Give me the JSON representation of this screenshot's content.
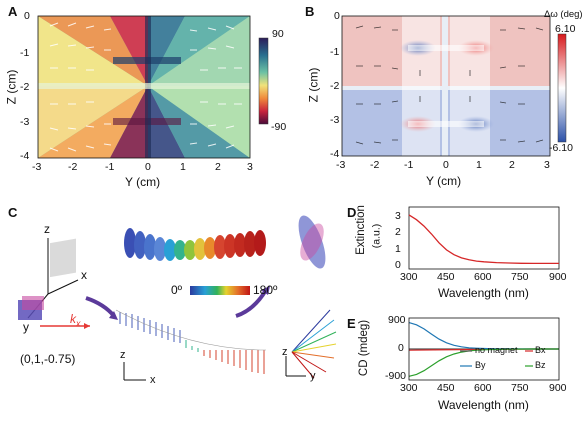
{
  "panels": {
    "A": {
      "label": "A",
      "xlabel": "Y (cm)",
      "ylabel": "Z (cm)",
      "xticks": [
        "-3",
        "-2",
        "-1",
        "0",
        "1",
        "2",
        "3"
      ],
      "yticks": [
        "0",
        "-1",
        "-2",
        "-3",
        "-4"
      ],
      "colorbar_max": "90",
      "colorbar_min": "-90"
    },
    "B": {
      "label": "B",
      "xlabel": "Y (cm)",
      "ylabel": "Z (cm)",
      "xticks": [
        "-3",
        "-2",
        "-1",
        "0",
        "1",
        "2",
        "3"
      ],
      "yticks": [
        "0",
        "-1",
        "-2",
        "-3",
        "-4"
      ],
      "colorbar_title": "Δω (deg)",
      "colorbar_max": "6.10",
      "colorbar_min": "-6.10"
    },
    "C": {
      "label": "C",
      "axis_z": "z",
      "axis_x": "x",
      "axis_y": "y",
      "k_label": "k",
      "k_sub": "x",
      "coordinate": "(0,1,-0.75)",
      "scale_min": "0º",
      "scale_max": "180º",
      "bottom_z1": "z",
      "bottom_x": "x",
      "bottom_z2": "z",
      "bottom_y": "y"
    },
    "D": {
      "label": "D",
      "ylabel": "Extinction",
      "ylabel2": "(a.u.)",
      "xlabel": "Wavelength (nm)",
      "xticks": [
        "300",
        "450",
        "600",
        "750",
        "900"
      ],
      "yticks": [
        "3",
        "2",
        "1",
        "0"
      ]
    },
    "E": {
      "label": "E",
      "ylabel": "CD (mdeg)",
      "xlabel": "Wavelength (nm)",
      "xticks": [
        "300",
        "450",
        "600",
        "750",
        "900"
      ],
      "yticks": [
        "900",
        "0",
        "-900"
      ],
      "legend": [
        "no magnet",
        "Bx",
        "By",
        "Bz"
      ]
    }
  },
  "chart_data": [
    {
      "type": "line",
      "panel": "D",
      "xlabel": "Wavelength (nm)",
      "ylabel": "Extinction (a.u.)",
      "xlim": [
        300,
        900
      ],
      "ylim": [
        -0.3,
        3.6
      ],
      "series": [
        {
          "color": "#d62728",
          "x": [
            300,
            330,
            360,
            390,
            420,
            450,
            480,
            510,
            540,
            570,
            600,
            650,
            700,
            750,
            800,
            850,
            900
          ],
          "y": [
            3.1,
            2.8,
            2.4,
            1.9,
            1.35,
            0.9,
            0.6,
            0.4,
            0.28,
            0.2,
            0.15,
            0.1,
            0.08,
            0.06,
            0.05,
            0.05,
            0.05
          ]
        }
      ]
    },
    {
      "type": "line",
      "panel": "E",
      "xlabel": "Wavelength (nm)",
      "ylabel": "CD (mdeg)",
      "xlim": [
        300,
        900
      ],
      "ylim": [
        -1000,
        1000
      ],
      "series": [
        {
          "name": "no magnet",
          "color": "#555555",
          "x": [
            300,
            400,
            500,
            600,
            700,
            800,
            900
          ],
          "y": [
            0,
            0,
            0,
            0,
            0,
            0,
            0
          ]
        },
        {
          "name": "Bx",
          "color": "#d62728",
          "x": [
            300,
            400,
            500,
            600,
            700,
            800,
            900
          ],
          "y": [
            -40,
            -30,
            -20,
            -10,
            -5,
            0,
            0
          ]
        },
        {
          "name": "By",
          "color": "#1f77b4",
          "x": [
            300,
            330,
            360,
            390,
            420,
            450,
            480,
            510,
            540,
            570,
            600,
            650,
            700,
            800,
            900
          ],
          "y": [
            850,
            780,
            650,
            480,
            320,
            200,
            120,
            70,
            40,
            25,
            15,
            8,
            5,
            0,
            0
          ]
        },
        {
          "name": "Bz",
          "color": "#2ca02c",
          "x": [
            300,
            330,
            360,
            390,
            420,
            450,
            480,
            510,
            540,
            570,
            600,
            650,
            700,
            800,
            900
          ],
          "y": [
            -880,
            -820,
            -700,
            -540,
            -380,
            -250,
            -160,
            -100,
            -60,
            -40,
            -25,
            -12,
            -6,
            0,
            0
          ]
        }
      ]
    }
  ]
}
